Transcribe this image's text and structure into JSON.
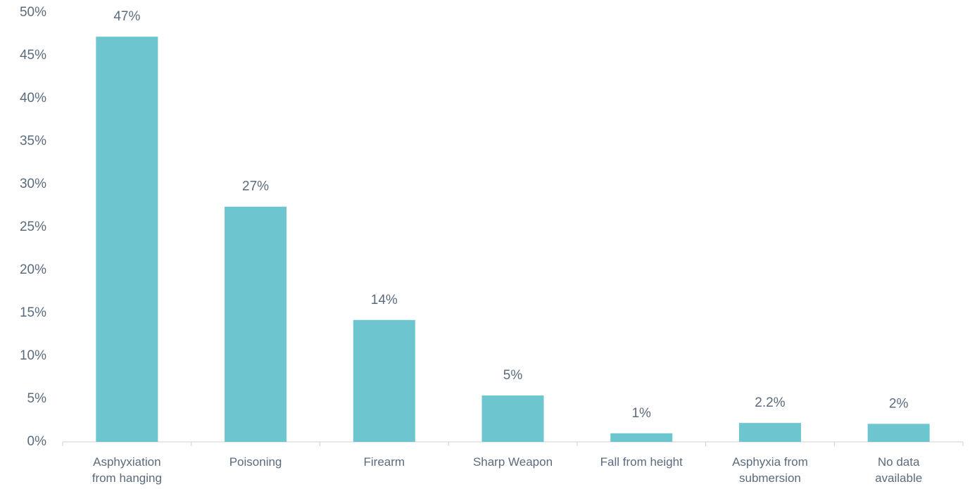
{
  "chart_data": {
    "type": "bar",
    "categories": [
      "Asphyxiation\nfrom hanging",
      "Poisoning",
      "Firearm",
      "Sharp Weapon",
      "Fall from height",
      "Asphyxia from\nsubmersion",
      "No data\navailable"
    ],
    "values": [
      47.2,
      27.4,
      14.2,
      5.4,
      1.0,
      2.2,
      2.1
    ],
    "value_labels": [
      "47%",
      "27%",
      "14%",
      "5%",
      "1%",
      "2.2%",
      "2%"
    ],
    "color": "#6cc5cf",
    "ylim": [
      0,
      50
    ],
    "yticks": [
      {
        "value": 0,
        "label": "0%"
      },
      {
        "value": 5,
        "label": "5%"
      },
      {
        "value": 10,
        "label": "10%"
      },
      {
        "value": 15,
        "label": "15%"
      },
      {
        "value": 20,
        "label": "20%"
      },
      {
        "value": 25,
        "label": "25%"
      },
      {
        "value": 30,
        "label": "30%"
      },
      {
        "value": 35,
        "label": "35%"
      },
      {
        "value": 40,
        "label": "40%"
      },
      {
        "value": 45,
        "label": "45%"
      },
      {
        "value": 50,
        "label": "50%"
      }
    ],
    "grid": false
  }
}
